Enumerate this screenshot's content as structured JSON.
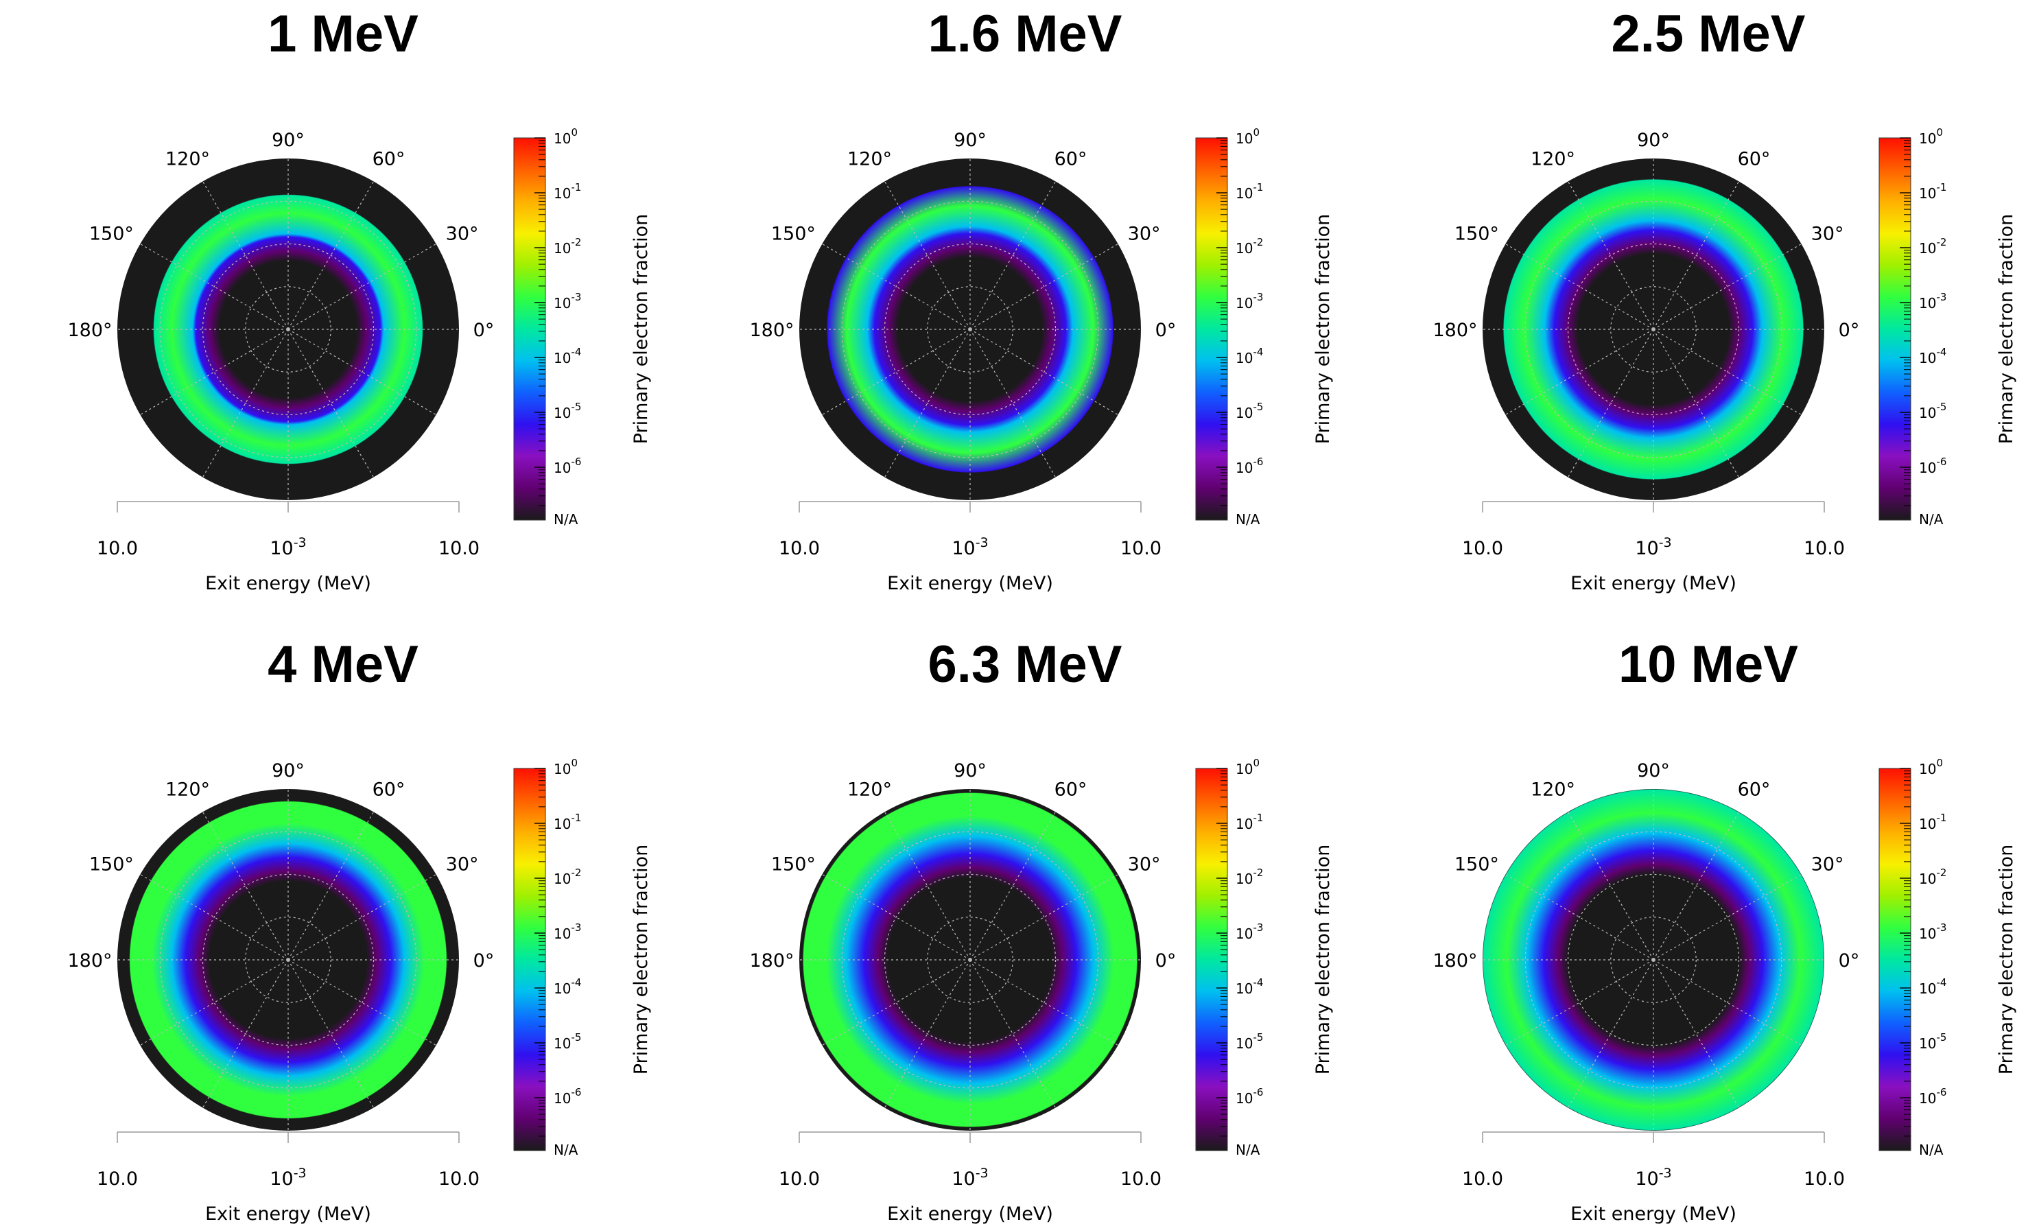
{
  "figure": {
    "type": "polar_heatmap",
    "angle_ticks": [
      "0°",
      "30°",
      "60°",
      "90°",
      "120°",
      "150°",
      "180°"
    ],
    "radial_axis": {
      "label": "Exit energy (MeV)",
      "left_tick": "10.0",
      "center_tick_base": "10",
      "center_tick_exp": "-3",
      "right_tick": "10.0",
      "scale": "log"
    },
    "colorbar": {
      "label": "Primary electron fraction",
      "scale": "log",
      "tick_base": "10",
      "tick_exponents": [
        "0",
        "-1",
        "-2",
        "-3",
        "-4",
        "-5",
        "-6"
      ],
      "na_label": "N/A",
      "colors": [
        "#1a1a1a",
        "#600070",
        "#8a10c0",
        "#3010f0",
        "#1060ff",
        "#00c0f0",
        "#00e8a0",
        "#30ff40",
        "#a0f000",
        "#f8f000",
        "#ffb000",
        "#ff6000",
        "#ff1000"
      ]
    }
  },
  "chart_data": [
    {
      "type": "heatmap",
      "title": "1 MeV",
      "outer_fraction": 0.79,
      "ring_peak_log10": -3.1,
      "rim_log10": -3.6,
      "core_fraction": 0.4
    },
    {
      "type": "heatmap",
      "title": "1.6 MeV",
      "outer_fraction": 0.84,
      "ring_peak_log10": -3.0,
      "rim_log10": -5.3,
      "core_fraction": 0.42
    },
    {
      "type": "heatmap",
      "title": "2.5 MeV",
      "outer_fraction": 0.88,
      "ring_peak_log10": -3.0,
      "rim_log10": -3.3,
      "core_fraction": 0.44
    },
    {
      "type": "heatmap",
      "title": "4 MeV",
      "outer_fraction": 0.93,
      "ring_peak_log10": -3.0,
      "rim_log10": -3.2,
      "core_fraction": 0.46
    },
    {
      "type": "heatmap",
      "title": "6.3 MeV",
      "outer_fraction": 0.98,
      "ring_peak_log10": -3.0,
      "rim_log10": -3.1,
      "core_fraction": 0.48
    },
    {
      "type": "heatmap",
      "title": "10 MeV",
      "outer_fraction": 1.0,
      "ring_peak_log10": -3.0,
      "rim_log10": -3.4,
      "core_fraction": 0.5
    }
  ]
}
